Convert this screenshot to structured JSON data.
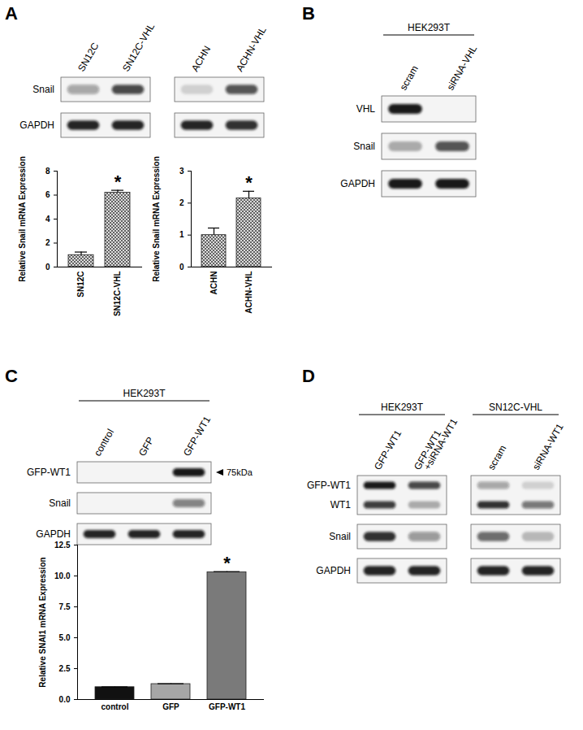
{
  "panels": [
    {
      "letter": "A",
      "blots": [
        {
          "lanes": [
            "SN12C",
            "SN12C-VHL"
          ],
          "rows": [
            {
              "labels": [
                "Snail"
              ],
              "bands": [
                [
                  0.35,
                  0.75
                ]
              ]
            },
            {
              "labels": [
                "GAPDH"
              ],
              "bands": [
                [
                  0.9,
                  0.9
                ]
              ]
            }
          ]
        },
        {
          "lanes": [
            "ACHN",
            "ACHN-VHL"
          ],
          "rows": [
            {
              "bands": [
                [
                  0.15,
                  0.7
                ]
              ]
            },
            {
              "bands": [
                [
                  0.9,
                  0.85
                ]
              ]
            }
          ]
        }
      ]
    },
    {
      "letter": "B",
      "blots": [
        {
          "header": "HEK293T",
          "lanes": [
            "scram",
            "siRNA-VHL"
          ],
          "rows": [
            {
              "labels": [
                "VHL"
              ],
              "bands": [
                [
                  0.95,
                  0
                ]
              ]
            },
            {
              "labels": [
                "Snail"
              ],
              "bands": [
                [
                  0.3,
                  0.7
                ]
              ]
            },
            {
              "labels": [
                "GAPDH"
              ],
              "bands": [
                [
                  0.95,
                  0.95
                ]
              ]
            }
          ]
        }
      ]
    },
    {
      "letter": "C",
      "blots": [
        {
          "header": "HEK293T",
          "lanes": [
            "control",
            "GFP",
            "GFP-WT1"
          ],
          "rows": [
            {
              "labels": [
                "GFP-WT1"
              ],
              "bands": [
                [
                  0,
                  0,
                  0.95
                ]
              ],
              "annotation": "75kDa"
            },
            {
              "labels": [
                "Snail"
              ],
              "bands": [
                [
                  0,
                  0,
                  0.5
                ]
              ]
            },
            {
              "labels": [
                "GAPDH"
              ],
              "bands": [
                [
                  0.9,
                  0.9,
                  0.9
                ]
              ]
            }
          ]
        }
      ]
    },
    {
      "letter": "D",
      "blots": [
        {
          "header": "HEK293T",
          "lanes": [
            "GFP-WT1",
            "GFP-WT1 +siRNA-WT1"
          ],
          "rows": [
            {
              "labels": [
                "GFP-WT1",
                "WT1"
              ],
              "bands": [
                [
                  0.95,
                  0.75
                ],
                [
                  0.8,
                  0.3
                ]
              ]
            },
            {
              "labels": [
                "Snail"
              ],
              "bands": [
                [
                  0.85,
                  0.4
                ]
              ]
            },
            {
              "labels": [
                "GAPDH"
              ],
              "bands": [
                [
                  0.9,
                  0.9
                ]
              ]
            }
          ]
        },
        {
          "header": "SN12C-VHL",
          "lanes": [
            "scram",
            "siRNA-WT1"
          ],
          "rows": [
            {
              "bands": [
                [
                  0.35,
                  0.15
                ],
                [
                  0.85,
                  0.55
                ]
              ]
            },
            {
              "bands": [
                [
                  0.6,
                  0.25
                ]
              ]
            },
            {
              "bands": [
                [
                  0.9,
                  0.9
                ]
              ]
            }
          ]
        }
      ]
    }
  ],
  "chart_data": [
    {
      "type": "bar",
      "y_label": "Relative Snail mRNA Expression",
      "categories": [
        "SN12C",
        "SN12C-VHL"
      ],
      "values": [
        1.0,
        6.2
      ],
      "errors": [
        0.25,
        0.2
      ],
      "colors": [
        "#555555",
        "#555555"
      ],
      "ylim": [
        0,
        8
      ],
      "yticks": [
        0,
        2,
        4,
        6,
        8
      ],
      "annotations": [
        {
          "category": "SN12C-VHL",
          "text": "*"
        }
      ]
    },
    {
      "type": "bar",
      "y_label": "Relative Snail mRNA Expression",
      "categories": [
        "ACHN",
        "ACHN-VHL"
      ],
      "values": [
        1.0,
        2.15
      ],
      "errors": [
        0.22,
        0.22
      ],
      "colors": [
        "#555555",
        "#555555"
      ],
      "ylim": [
        0,
        3
      ],
      "yticks": [
        0,
        1,
        2,
        3
      ],
      "annotations": [
        {
          "category": "ACHN-VHL",
          "text": "*"
        }
      ]
    },
    {
      "type": "bar",
      "y_label": "Relative SNAI1 mRNA Expression",
      "categories": [
        "control",
        "GFP",
        "GFP-WT1"
      ],
      "values": [
        1.0,
        1.25,
        10.3
      ],
      "errors": [
        0.02,
        0.03,
        0.05
      ],
      "colors": [
        "#111111",
        "#a6a6a6",
        "#7a7a7a"
      ],
      "ylim": [
        0,
        12.5
      ],
      "yticks": [
        {
          "value": 0,
          "label": "0.0"
        },
        {
          "value": 2.5,
          "label": "2.5"
        },
        {
          "value": 5,
          "label": "5.0"
        },
        {
          "value": 7.5,
          "label": "7.5"
        },
        {
          "value": 10,
          "label": "10.0"
        },
        {
          "value": 12.5,
          "label": "12.5"
        }
      ],
      "annotations": [
        {
          "category": "GFP-WT1",
          "text": "*"
        }
      ]
    }
  ]
}
